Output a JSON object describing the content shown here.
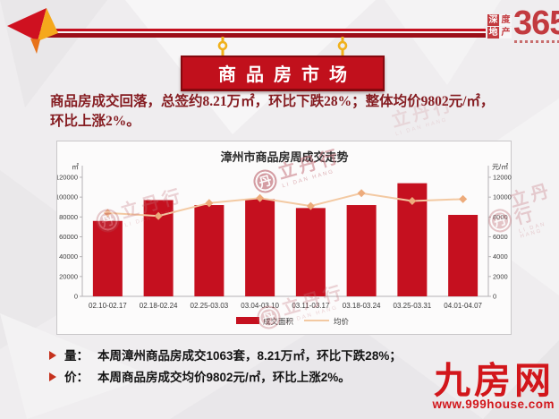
{
  "header": {
    "banner_title": "商品房市场",
    "brand": {
      "tiles": [
        "深",
        "度",
        "地",
        "产"
      ],
      "number": "365"
    }
  },
  "summary": {
    "line1": "商品房成交回落，总签约8.21万㎡，环比下跌28%；整体均价9802元/㎡，",
    "line2": "环比上涨2%。"
  },
  "chart_data": {
    "type": "bar",
    "title": "漳州市商品房周成交走势",
    "left_axis_label": "㎡",
    "right_axis_label": "元/㎡",
    "categories": [
      "02.10-02.17",
      "02.18-02.24",
      "02.25-03.03",
      "03.04-03.10",
      "03.11-03.17",
      "03.18-03.24",
      "03.25-03.31",
      "04.01-04.07"
    ],
    "series": [
      {
        "name": "成交面积",
        "type": "bar",
        "axis": "left",
        "color": "#c5101f",
        "values": [
          76000,
          97000,
          92000,
          98000,
          89000,
          92000,
          114000,
          82100
        ]
      },
      {
        "name": "均价",
        "type": "line",
        "axis": "right",
        "color": "#f3c9a2",
        "marker_color": "#edab7b",
        "values": [
          8400,
          8100,
          9400,
          9900,
          9100,
          10400,
          9610,
          9802
        ]
      }
    ],
    "left_ylim": [
      0,
      120000
    ],
    "right_ylim": [
      0,
      12000
    ],
    "left_ticks": [
      0,
      20000,
      40000,
      60000,
      80000,
      100000,
      120000
    ],
    "right_ticks": [
      0,
      2000,
      4000,
      6000,
      8000,
      10000,
      12000
    ],
    "grid": false,
    "legend_position": "bottom"
  },
  "bullets": [
    {
      "label": "量：",
      "text": "本周漳州商品房成交1063套，8.21万㎡，环比下跌28%；"
    },
    {
      "label": "价：",
      "text": "本周商品房成交均价9802元/㎡，环比上涨2%。"
    }
  ],
  "footer": {
    "site_name": "九房网",
    "site_url": "www.999house.com"
  },
  "watermark": {
    "seal_char": "丹",
    "text": "立丹行",
    "subtext": "LI DAN HANG"
  },
  "colors": {
    "bar_red": "#c5101f",
    "line_peach": "#f3c9a2",
    "banner_red": "#c1101c",
    "headline_red": "#851c21",
    "site_red": "#d2161b"
  }
}
